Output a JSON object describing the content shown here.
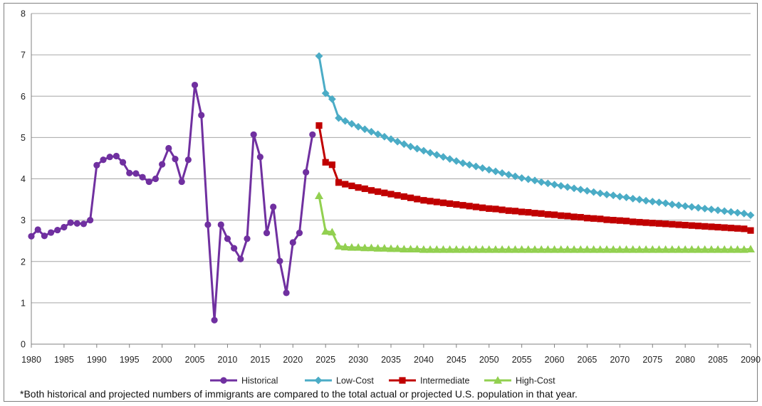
{
  "chart_data": {
    "type": "line",
    "title": "",
    "xlabel": "",
    "ylabel": "",
    "xlim": [
      1980,
      2090
    ],
    "ylim": [
      0,
      8
    ],
    "y_ticks": [
      0,
      1,
      2,
      3,
      4,
      5,
      6,
      7,
      8
    ],
    "x_ticks": [
      1980,
      1985,
      1990,
      1995,
      2000,
      2005,
      2010,
      2015,
      2020,
      2025,
      2030,
      2035,
      2040,
      2045,
      2050,
      2055,
      2060,
      2065,
      2070,
      2075,
      2080,
      2085,
      2090
    ],
    "grid": "horizontal",
    "legend_position": "bottom",
    "series": [
      {
        "name": "Historical",
        "color": "#7030a0",
        "marker": "circle",
        "x": [
          1980,
          1981,
          1982,
          1983,
          1984,
          1985,
          1986,
          1987,
          1988,
          1989,
          1990,
          1991,
          1992,
          1993,
          1994,
          1995,
          1996,
          1997,
          1998,
          1999,
          2000,
          2001,
          2002,
          2003,
          2004,
          2005,
          2006,
          2007,
          2008,
          2009,
          2010,
          2011,
          2012,
          2013,
          2014,
          2015,
          2016,
          2017,
          2018,
          2019,
          2020,
          2021,
          2022,
          2023
        ],
        "y": [
          2.61,
          2.77,
          2.62,
          2.7,
          2.76,
          2.83,
          2.94,
          2.92,
          2.91,
          3.0,
          4.33,
          4.46,
          4.53,
          4.55,
          4.4,
          4.14,
          4.13,
          4.04,
          3.93,
          4.0,
          4.35,
          4.74,
          4.48,
          3.93,
          4.46,
          6.27,
          5.54,
          2.89,
          0.58,
          2.89,
          2.55,
          2.32,
          2.06,
          2.55,
          5.07,
          4.53,
          2.69,
          3.32,
          2.01,
          1.24,
          2.46,
          2.69,
          4.16,
          5.07
        ]
      },
      {
        "name": "Low-Cost",
        "color": "#4bacc6",
        "marker": "diamond",
        "x": [
          2024,
          2025,
          2026,
          2027,
          2028,
          2029,
          2030,
          2031,
          2032,
          2033,
          2034,
          2035,
          2036,
          2037,
          2038,
          2039,
          2040,
          2041,
          2042,
          2043,
          2044,
          2045,
          2046,
          2047,
          2048,
          2049,
          2050,
          2051,
          2052,
          2053,
          2054,
          2055,
          2056,
          2057,
          2058,
          2059,
          2060,
          2061,
          2062,
          2063,
          2064,
          2065,
          2066,
          2067,
          2068,
          2069,
          2070,
          2071,
          2072,
          2073,
          2074,
          2075,
          2076,
          2077,
          2078,
          2079,
          2080,
          2081,
          2082,
          2083,
          2084,
          2085,
          2086,
          2087,
          2088,
          2089,
          2090
        ],
        "y": [
          6.97,
          6.07,
          5.93,
          5.47,
          5.4,
          5.33,
          5.26,
          5.2,
          5.14,
          5.08,
          5.02,
          4.96,
          4.9,
          4.84,
          4.78,
          4.73,
          4.68,
          4.63,
          4.58,
          4.53,
          4.48,
          4.43,
          4.38,
          4.34,
          4.3,
          4.26,
          4.22,
          4.18,
          4.14,
          4.1,
          4.06,
          4.02,
          3.99,
          3.96,
          3.92,
          3.89,
          3.86,
          3.83,
          3.8,
          3.77,
          3.74,
          3.71,
          3.68,
          3.65,
          3.62,
          3.6,
          3.57,
          3.55,
          3.52,
          3.5,
          3.47,
          3.45,
          3.43,
          3.41,
          3.38,
          3.36,
          3.34,
          3.32,
          3.3,
          3.28,
          3.26,
          3.24,
          3.22,
          3.2,
          3.18,
          3.16,
          3.12
        ]
      },
      {
        "name": "Intermediate",
        "color": "#c00000",
        "marker": "square",
        "x": [
          2024,
          2025,
          2026,
          2027,
          2028,
          2029,
          2030,
          2031,
          2032,
          2033,
          2034,
          2035,
          2036,
          2037,
          2038,
          2039,
          2040,
          2041,
          2042,
          2043,
          2044,
          2045,
          2046,
          2047,
          2048,
          2049,
          2050,
          2051,
          2052,
          2053,
          2054,
          2055,
          2056,
          2057,
          2058,
          2059,
          2060,
          2061,
          2062,
          2063,
          2064,
          2065,
          2066,
          2067,
          2068,
          2069,
          2070,
          2071,
          2072,
          2073,
          2074,
          2075,
          2076,
          2077,
          2078,
          2079,
          2080,
          2081,
          2082,
          2083,
          2084,
          2085,
          2086,
          2087,
          2088,
          2089,
          2090
        ],
        "y": [
          5.29,
          4.4,
          4.34,
          3.91,
          3.87,
          3.83,
          3.79,
          3.76,
          3.72,
          3.69,
          3.66,
          3.63,
          3.6,
          3.57,
          3.54,
          3.51,
          3.48,
          3.46,
          3.44,
          3.42,
          3.4,
          3.38,
          3.36,
          3.34,
          3.32,
          3.3,
          3.28,
          3.27,
          3.25,
          3.23,
          3.22,
          3.2,
          3.19,
          3.17,
          3.16,
          3.14,
          3.13,
          3.11,
          3.1,
          3.08,
          3.07,
          3.05,
          3.04,
          3.03,
          3.01,
          3.0,
          2.99,
          2.98,
          2.96,
          2.95,
          2.94,
          2.93,
          2.92,
          2.91,
          2.9,
          2.89,
          2.88,
          2.87,
          2.86,
          2.85,
          2.84,
          2.83,
          2.82,
          2.81,
          2.8,
          2.79,
          2.75
        ]
      },
      {
        "name": "High-Cost",
        "color": "#92d050",
        "marker": "triangle",
        "x": [
          2024,
          2025,
          2026,
          2027,
          2028,
          2029,
          2030,
          2031,
          2032,
          2033,
          2034,
          2035,
          2036,
          2037,
          2038,
          2039,
          2040,
          2041,
          2042,
          2043,
          2044,
          2045,
          2046,
          2047,
          2048,
          2049,
          2050,
          2051,
          2052,
          2053,
          2054,
          2055,
          2056,
          2057,
          2058,
          2059,
          2060,
          2061,
          2062,
          2063,
          2064,
          2065,
          2066,
          2067,
          2068,
          2069,
          2070,
          2071,
          2072,
          2073,
          2074,
          2075,
          2076,
          2077,
          2078,
          2079,
          2080,
          2081,
          2082,
          2083,
          2084,
          2085,
          2086,
          2087,
          2088,
          2089,
          2090
        ],
        "y": [
          3.59,
          2.73,
          2.71,
          2.37,
          2.35,
          2.34,
          2.34,
          2.33,
          2.33,
          2.32,
          2.32,
          2.31,
          2.31,
          2.3,
          2.3,
          2.3,
          2.29,
          2.29,
          2.29,
          2.29,
          2.29,
          2.29,
          2.29,
          2.29,
          2.29,
          2.29,
          2.29,
          2.29,
          2.29,
          2.29,
          2.29,
          2.29,
          2.29,
          2.29,
          2.29,
          2.29,
          2.29,
          2.29,
          2.29,
          2.29,
          2.29,
          2.29,
          2.29,
          2.29,
          2.29,
          2.29,
          2.29,
          2.29,
          2.29,
          2.29,
          2.29,
          2.29,
          2.29,
          2.29,
          2.29,
          2.29,
          2.29,
          2.29,
          2.29,
          2.29,
          2.29,
          2.29,
          2.29,
          2.29,
          2.29,
          2.29,
          2.3
        ]
      }
    ]
  },
  "footnote": "*Both historical and projected numbers of immigrants are compared to the total actual or projected U.S. population in that year."
}
